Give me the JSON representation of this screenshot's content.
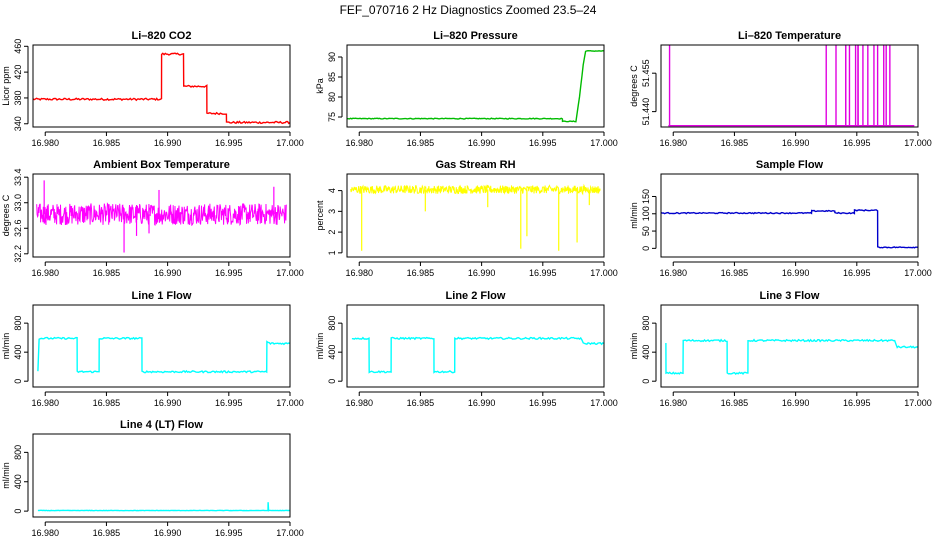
{
  "main_title": "FEF_070716  2 Hz Diagnostics Zoomed 23.5–24",
  "chart_data": [
    {
      "type": "line",
      "title": "Li–820 CO2",
      "ylabel": "Licor ppm",
      "color": "#ff0000",
      "xlim": [
        16.979,
        17.0
      ],
      "ylim": [
        335,
        462
      ],
      "xticks": [
        "16.980",
        "16.985",
        "16.990",
        "16.995",
        "17.000"
      ],
      "yticks": [
        340,
        380,
        420,
        460
      ],
      "series": [
        {
          "name": "CO2",
          "x": [
            16.979,
            16.9895,
            16.98951,
            16.9913,
            16.99131,
            16.9932,
            16.99321,
            16.9948,
            16.99481,
            16.9982,
            16.99821,
            17.0
          ],
          "y": [
            378,
            378,
            448,
            448,
            398,
            398,
            356,
            356,
            342,
            342,
            342,
            342
          ],
          "noise": 1.5
        }
      ]
    },
    {
      "type": "line",
      "title": "Li–820 Pressure",
      "ylabel": "kPa",
      "color": "#00bb00",
      "xlim": [
        16.979,
        17.0
      ],
      "ylim": [
        72.5,
        93
      ],
      "xticks": [
        "16.980",
        "16.985",
        "16.990",
        "16.995",
        "17.000"
      ],
      "yticks": [
        75,
        80,
        85,
        90
      ],
      "series": [
        {
          "name": "Pressure",
          "x": [
            16.979,
            16.9966,
            16.99661,
            16.9977,
            16.998,
            16.9983,
            16.9985,
            17.0
          ],
          "y": [
            74.6,
            74.6,
            73.9,
            73.9,
            80,
            88,
            91.5,
            91.5
          ],
          "noise": 0.1
        }
      ]
    },
    {
      "type": "spikes",
      "title": "Li–820 Temperature",
      "ylabel": "degrees C",
      "color": "#e000e0",
      "xlim": [
        16.979,
        17.0
      ],
      "ylim": [
        51.434,
        51.466
      ],
      "xticks": [
        "16.980",
        "16.985",
        "16.990",
        "16.995",
        "17.000"
      ],
      "yticks": [
        "51.440",
        "51.455"
      ],
      "baseline": 51.4345,
      "top": 51.466,
      "spike_x": [
        16.9797,
        16.9941,
        16.9949,
        16.9951,
        16.9959,
        16.9967,
        16.9925,
        16.9933,
        16.9941,
        16.9944,
        16.9951,
        16.9955,
        16.9964,
        16.9972,
        16.9974,
        16.9977
      ]
    },
    {
      "type": "noise",
      "title": "Ambient Box Temperature",
      "ylabel": "degrees C",
      "color": "#ff00ff",
      "xlim": [
        16.979,
        17.0
      ],
      "ylim": [
        32.15,
        33.45
      ],
      "xticks": [
        "16.980",
        "16.985",
        "16.990",
        "16.995",
        "17.000"
      ],
      "yticks": [
        "32.2",
        "32.6",
        "33.0",
        "33.4"
      ],
      "center": 32.82,
      "amp": 0.17,
      "outliers_low": [
        32.22,
        32.48,
        32.52
      ],
      "outliers_high": [
        33.35,
        33.2,
        33.25
      ]
    },
    {
      "type": "noise",
      "title": "Gas Stream RH",
      "ylabel": "percent",
      "color": "#ffff00",
      "xlim": [
        16.979,
        17.0
      ],
      "ylim": [
        0.8,
        4.8
      ],
      "xticks": [
        "16.980",
        "16.985",
        "16.990",
        "16.995",
        "17.000"
      ],
      "yticks": [
        1,
        2,
        3,
        4
      ],
      "center": 4.05,
      "amp": 0.2,
      "dips": [
        [
          16.9802,
          1.1
        ],
        [
          16.9932,
          1.2
        ],
        [
          16.9937,
          1.8
        ],
        [
          16.9963,
          1.1
        ],
        [
          16.9978,
          1.5
        ],
        [
          16.9854,
          3.0
        ],
        [
          16.9905,
          3.2
        ],
        [
          16.9988,
          3.3
        ]
      ]
    },
    {
      "type": "line",
      "title": "Sample Flow",
      "ylabel": "ml/min",
      "color": "#0000cc",
      "xlim": [
        16.979,
        17.0
      ],
      "ylim": [
        -25,
        215
      ],
      "xticks": [
        "16.980",
        "16.985",
        "16.990",
        "16.995",
        "17.000"
      ],
      "yticks": [
        0,
        50,
        100,
        150
      ],
      "series": [
        {
          "name": "Sample Flow",
          "x": [
            16.979,
            16.9913,
            16.99131,
            16.9932,
            16.99321,
            16.9948,
            16.99481,
            16.9967,
            16.99671,
            17.0
          ],
          "y": [
            102,
            102,
            108,
            108,
            102,
            102,
            110,
            110,
            3,
            3
          ],
          "noise": 1.5
        }
      ]
    },
    {
      "type": "line",
      "title": "Line 1 Flow",
      "ylabel": "ml/min",
      "color": "#00ffff",
      "xlim": [
        16.979,
        17.0
      ],
      "ylim": [
        -80,
        1050
      ],
      "xticks": [
        "16.980",
        "16.985",
        "16.990",
        "16.995",
        "17.000"
      ],
      "yticks": [
        0,
        400,
        800
      ],
      "series": [
        {
          "name": "Line 1",
          "x": [
            16.9794,
            16.9795,
            16.9826,
            16.98261,
            16.9844,
            16.98441,
            16.9879,
            16.98791,
            16.9981,
            16.99811,
            16.9984,
            17.0
          ],
          "y": [
            140,
            590,
            590,
            130,
            130,
            590,
            590,
            130,
            130,
            540,
            520,
            520
          ],
          "noise": 12
        }
      ]
    },
    {
      "type": "line",
      "title": "Line 2 Flow",
      "ylabel": "ml/min",
      "color": "#00ffff",
      "xlim": [
        16.979,
        17.0
      ],
      "ylim": [
        -80,
        1050
      ],
      "xticks": [
        "16.980",
        "16.985",
        "16.990",
        "16.995",
        "17.000"
      ],
      "yticks": [
        0,
        400,
        800
      ],
      "series": [
        {
          "name": "Line 2",
          "x": [
            16.9794,
            16.9808,
            16.98081,
            16.9826,
            16.98261,
            16.9861,
            16.98611,
            16.9878,
            16.98781,
            16.9981,
            16.9983,
            17.0
          ],
          "y": [
            590,
            590,
            130,
            130,
            590,
            590,
            130,
            130,
            590,
            590,
            520,
            520
          ],
          "noise": 12
        }
      ]
    },
    {
      "type": "line",
      "title": "Line 3 Flow",
      "ylabel": "ml/min",
      "color": "#00ffff",
      "xlim": [
        16.979,
        17.0
      ],
      "ylim": [
        -80,
        1050
      ],
      "xticks": [
        "16.980",
        "16.985",
        "16.990",
        "16.995",
        "17.000"
      ],
      "yticks": [
        0,
        400,
        800
      ],
      "series": [
        {
          "name": "Line 3",
          "x": [
            16.9794,
            16.97941,
            16.9808,
            16.98081,
            16.9844,
            16.98441,
            16.9861,
            16.98611,
            16.9981,
            16.9983,
            17.0
          ],
          "y": [
            520,
            110,
            110,
            560,
            560,
            110,
            110,
            560,
            560,
            470,
            470
          ],
          "noise": 12
        }
      ]
    },
    {
      "type": "line",
      "title": "Line 4 (LT) Flow",
      "ylabel": "ml/min",
      "color": "#00ffff",
      "xlim": [
        16.979,
        17.0
      ],
      "ylim": [
        -80,
        1050
      ],
      "xticks": [
        "16.980",
        "16.985",
        "16.990",
        "16.995",
        "17.000"
      ],
      "yticks": [
        0,
        400,
        800
      ],
      "series": [
        {
          "name": "Line 4",
          "x": [
            16.9794,
            16.9982,
            16.99821,
            16.99825,
            16.9983,
            17.0
          ],
          "y": [
            8,
            8,
            120,
            10,
            8,
            8
          ],
          "noise": 3
        }
      ]
    }
  ]
}
